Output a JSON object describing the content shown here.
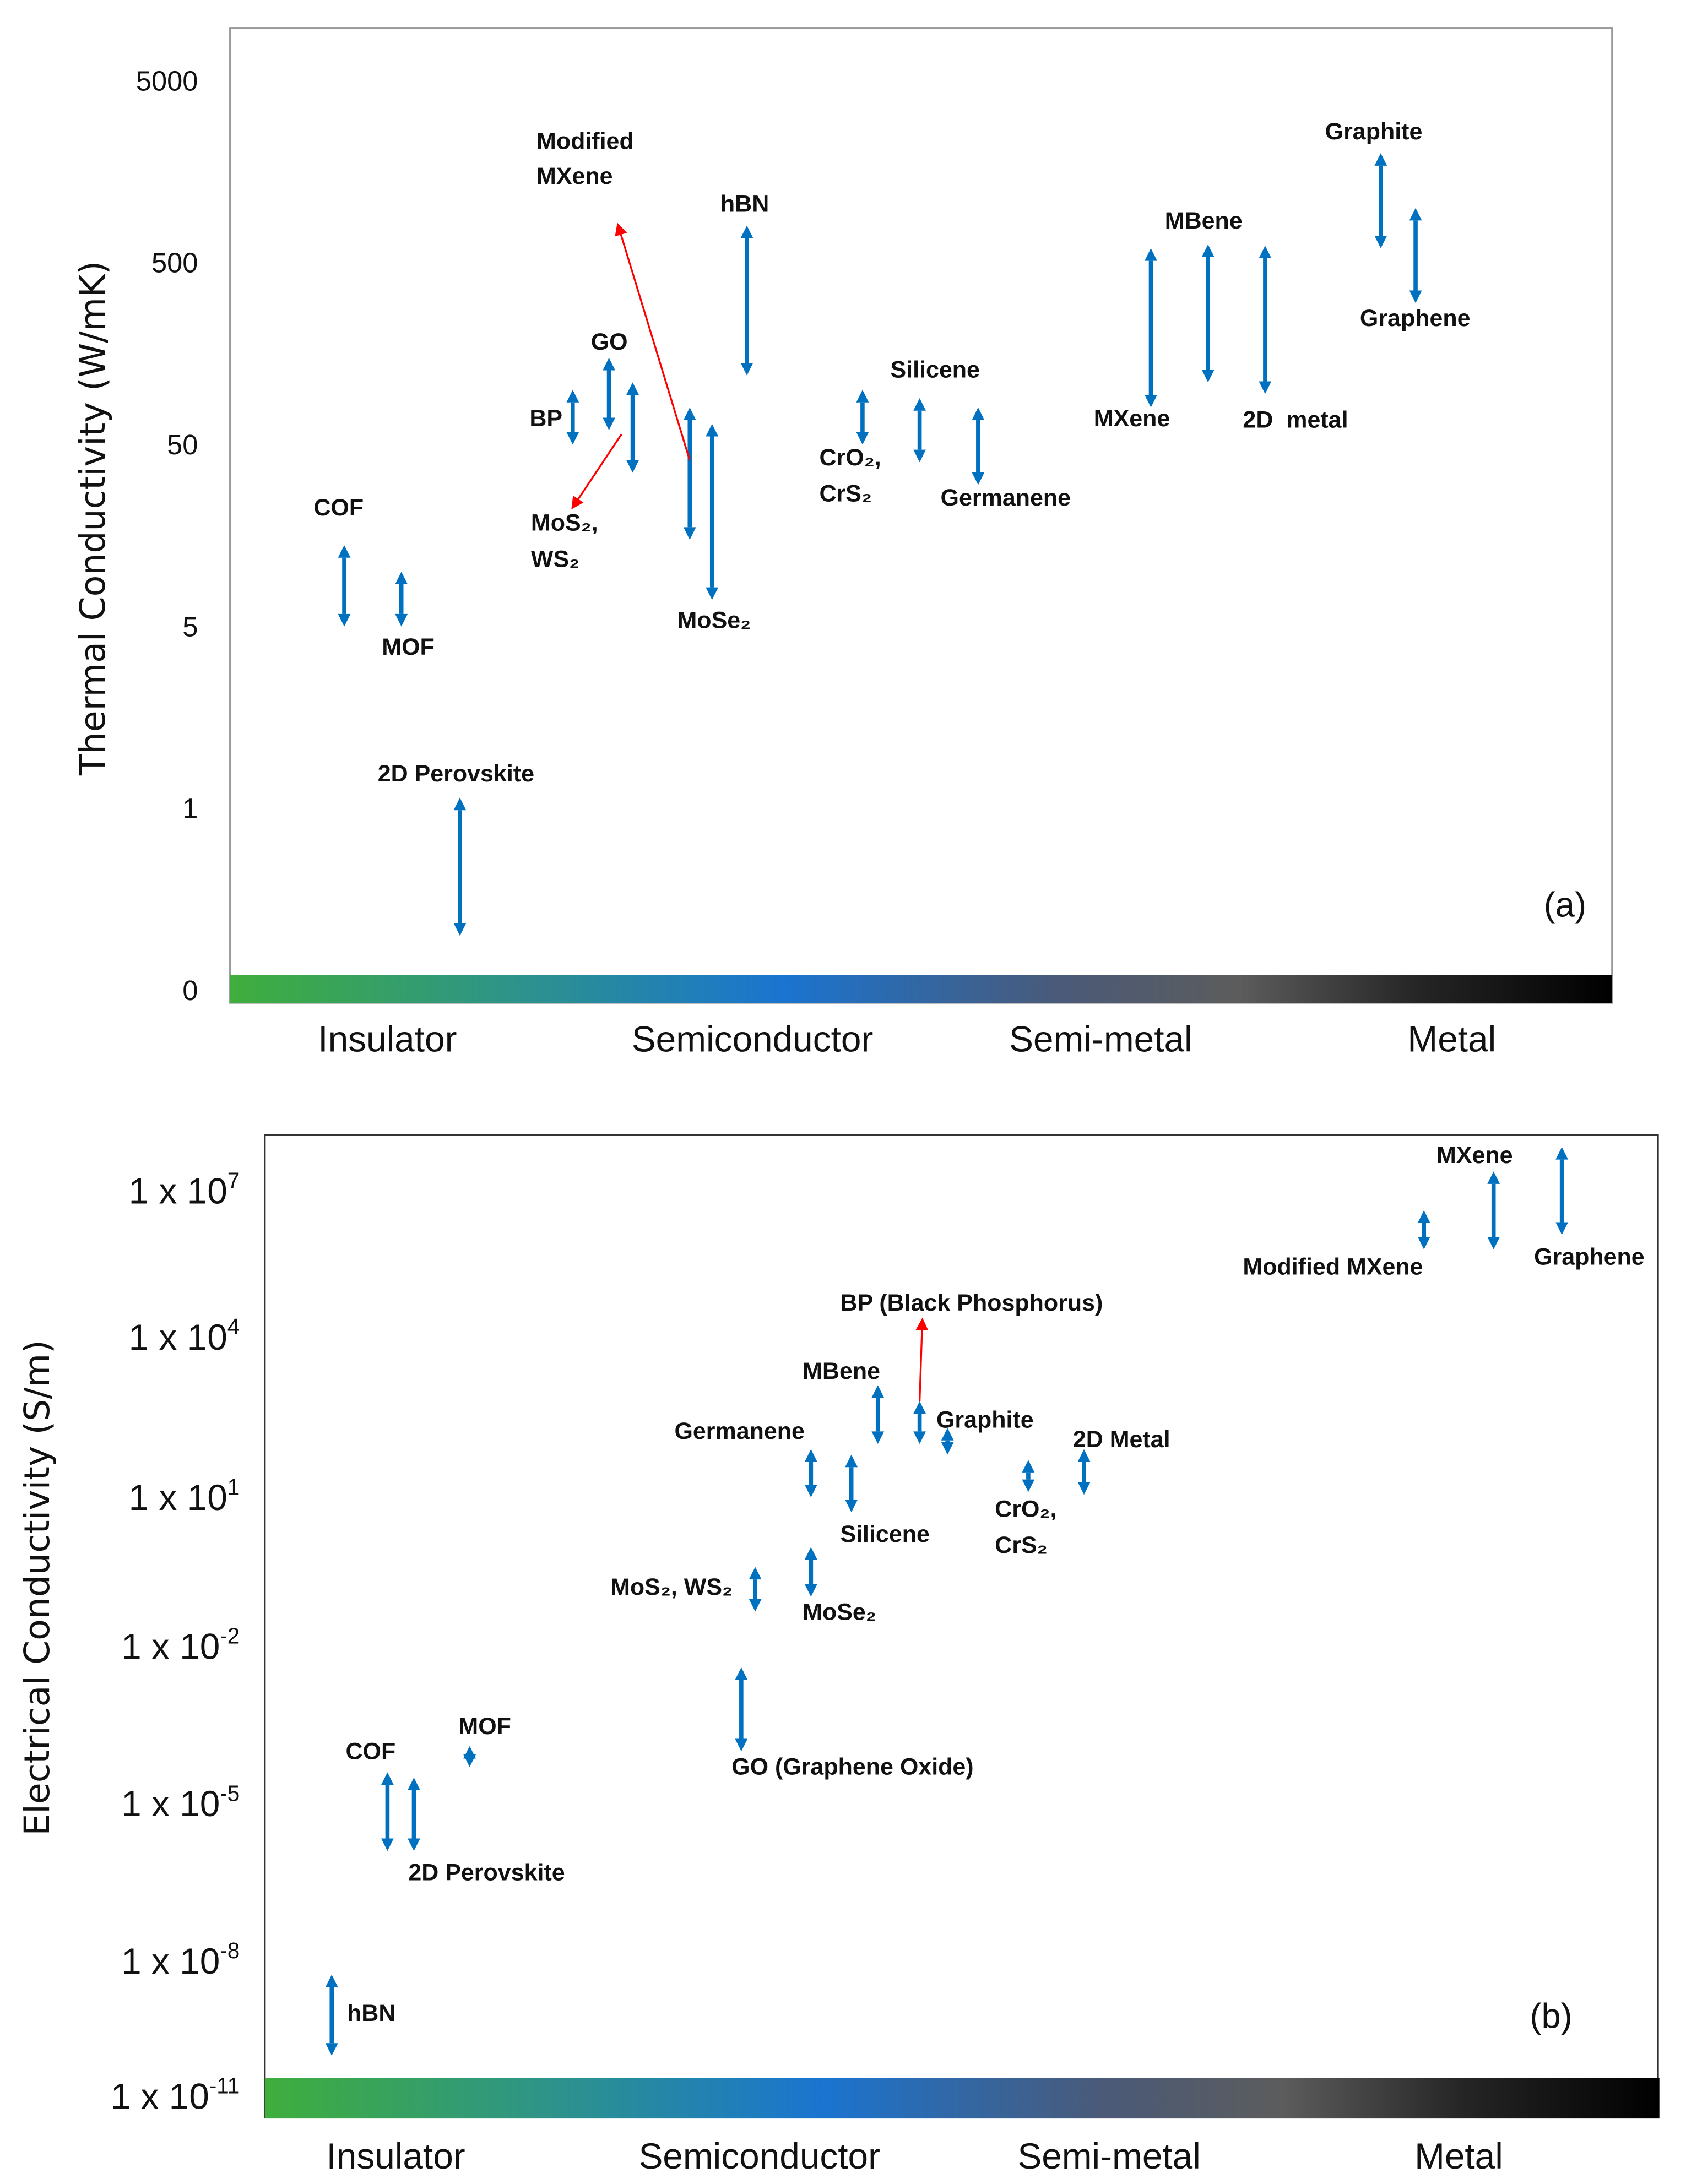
{
  "colors": {
    "arrow": "#0070C0",
    "highlight": "#FF0000",
    "gradient": [
      "#3FAE3C",
      "#2E9488",
      "#1A74D0",
      "#4A5A78",
      "#5C5C5C",
      "#000000"
    ]
  },
  "chart_data": [
    {
      "type": "range-arrows",
      "panel_label": "(a)",
      "ylabel": "Thermal Conductivity (W/mK)",
      "yscale": "log (ticks equally spaced)",
      "yticks": [
        0,
        1,
        5,
        50,
        500,
        5000
      ],
      "ytick_labels": [
        "0",
        "1",
        "5",
        "50",
        "500",
        "5000"
      ],
      "categories": [
        "Insulator",
        "Semiconductor",
        "Semi-metal",
        "Metal"
      ],
      "ranges": [
        {
          "name": "COF",
          "min": 5,
          "max": 14
        },
        {
          "name": "MOF",
          "min": 5,
          "max": 10
        },
        {
          "name": "2D Perovskite",
          "min": 0.3,
          "max": 1.1
        },
        {
          "name": "BP",
          "min": 50,
          "max": 100
        },
        {
          "name": "GO",
          "min": 60,
          "max": 150
        },
        {
          "name": "MoS₂, WS₂ (a)",
          "min": 35,
          "max": 110
        },
        {
          "name": "MoS₂, WS₂ (b)",
          "min": 15,
          "max": 80
        },
        {
          "name": "MoSe₂",
          "min": 7,
          "max": 65
        },
        {
          "name": "hBN",
          "min": 120,
          "max": 800
        },
        {
          "name": "CrO₂, CrS₂",
          "min": 50,
          "max": 100
        },
        {
          "name": "Silicene",
          "min": 40,
          "max": 90
        },
        {
          "name": "Germanene",
          "min": 30,
          "max": 80
        },
        {
          "name": "MXene",
          "min": 80,
          "max": 600
        },
        {
          "name": "MBene",
          "min": 110,
          "max": 630
        },
        {
          "name": "2D metal",
          "min": 95,
          "max": 620
        },
        {
          "name": "Graphite",
          "min": 600,
          "max": 2000
        },
        {
          "name": "Graphene",
          "min": 300,
          "max": 1000
        }
      ],
      "pointers": [
        {
          "name": "Modified MXene",
          "from": 41,
          "to": 830
        },
        {
          "name": "MoS₂, WS₂",
          "from": 57,
          "to": 22
        }
      ],
      "labels": [
        "Modified",
        "MXene",
        "hBN",
        "GO",
        "BP",
        "MoS₂,",
        "WS₂",
        "COF",
        "MOF",
        "2D Perovskite",
        "MoSe₂",
        "Silicene",
        "CrO₂,",
        "CrS₂",
        "Germanene",
        "MBene",
        "MXene",
        "2D  metal",
        "Graphite",
        "Graphene"
      ]
    },
    {
      "type": "range-arrows",
      "panel_label": "(b)",
      "ylabel": "Electrical Conductivity (S/m)",
      "yscale": "log10",
      "ytick_exponents": [
        7,
        4,
        1,
        -2,
        -5,
        -8,
        -11
      ],
      "ytick_base": "1 x 10",
      "ytick_sup": [
        "7",
        "4",
        "1",
        "-2",
        "-5",
        "-8",
        "-11"
      ],
      "categories": [
        "Insulator",
        "Semiconductor",
        "Semi-metal",
        "Metal"
      ],
      "ranges_log10": [
        {
          "name": "hBN",
          "min": -10.1,
          "max": -8.3
        },
        {
          "name": "COF",
          "min": -5.9,
          "max": -4.4
        },
        {
          "name": "2D Perovskite",
          "min": -5.9,
          "max": -4.5
        },
        {
          "name": "MOF",
          "min": -4.3,
          "max": -3.9
        },
        {
          "name": "GO (Graphene Oxide)",
          "min": -4.0,
          "max": -2.4
        },
        {
          "name": "MoS₂, WS₂",
          "min": -1.3,
          "max": -0.4
        },
        {
          "name": "MoSe₂",
          "min": -1.0,
          "max": 0.0
        },
        {
          "name": "Germanene",
          "min": 1.0,
          "max": 1.9
        },
        {
          "name": "Silicene",
          "min": 0.7,
          "max": 1.8
        },
        {
          "name": "MBene",
          "min": 2.0,
          "max": 3.1
        },
        {
          "name": "BP (Black Phosphorus)",
          "min": 2.0,
          "max": 2.8
        },
        {
          "name": "Graphite",
          "min": 1.8,
          "max": 2.3
        },
        {
          "name": "CrO₂, CrS₂",
          "min": 1.1,
          "max": 1.7
        },
        {
          "name": "2D Metal",
          "min": 1.05,
          "max": 1.9
        },
        {
          "name": "Modified MXene",
          "min": 5.8,
          "max": 6.6
        },
        {
          "name": "MXene",
          "min": 5.8,
          "max": 7.4
        },
        {
          "name": "Graphene",
          "min": 6.1,
          "max": 7.9
        }
      ],
      "pointers_log10": [
        {
          "name": "BP (Black Phosphorus)",
          "from": 2.8,
          "to": 4.4
        }
      ],
      "labels": [
        "MXene",
        "Modified MXene",
        "Graphene",
        "BP (Black Phosphorus)",
        "MBene",
        "Graphite",
        "Germanene",
        "2D Metal",
        "Silicene",
        "CrO₂,",
        "CrS₂",
        "MoS₂, WS₂",
        "MoSe₂",
        "MOF",
        "COF",
        "GO (Graphene Oxide)",
        "2D Perovskite",
        "hBN"
      ]
    }
  ]
}
